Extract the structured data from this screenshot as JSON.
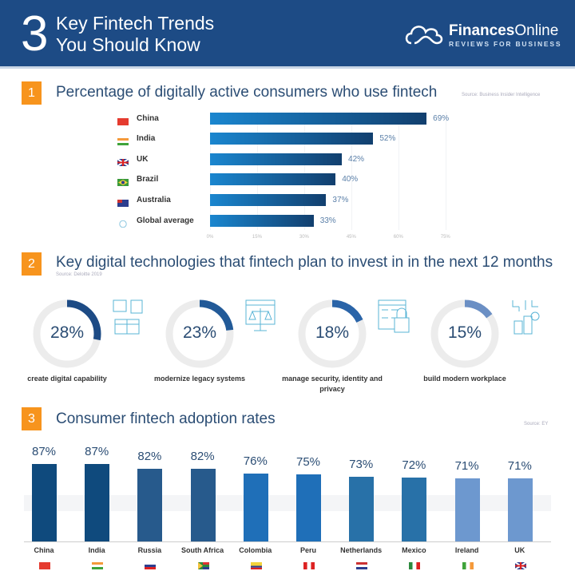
{
  "header": {
    "number": "3",
    "title_line1": "Key Fintech Trends",
    "title_line2": "You Should Know",
    "brand_bold": "Finances",
    "brand_light": "Online",
    "tagline": "REVIEWS FOR BUSINESS",
    "bg": "#1d4b85"
  },
  "sections": [
    {
      "number": "1",
      "title": "Percentage of digitally active consumers who use fintech",
      "source": "Source: Business Insider Intelligence"
    },
    {
      "number": "2",
      "title": "Key digital technologies that fintech plan to invest in in the next 12 months",
      "source": "Source: Deloitte 2019"
    },
    {
      "number": "3",
      "title": "Consumer fintech adoption rates",
      "source": "Source: EY"
    }
  ],
  "chart_data": [
    {
      "type": "bar",
      "orientation": "horizontal",
      "categories": [
        "China",
        "India",
        "UK",
        "Brazil",
        "Australia",
        "Global average"
      ],
      "values": [
        69,
        52,
        42,
        40,
        37,
        33
      ],
      "value_labels": [
        "69%",
        "52%",
        "42%",
        "40%",
        "37%",
        "33%"
      ],
      "xlim": [
        0,
        75
      ],
      "ticks": [
        "0%",
        "15%",
        "30%",
        "45%",
        "60%",
        "75%"
      ],
      "flags": [
        "china",
        "india",
        "uk",
        "brazil",
        "australia",
        "globe"
      ],
      "color": "#1565a8"
    },
    {
      "type": "pie",
      "variant": "donut",
      "categories": [
        "create digital capability",
        "modernize legacy systems",
        "manage security, identity and privacy",
        "build modern workplace"
      ],
      "values": [
        28,
        23,
        18,
        15
      ],
      "value_labels": [
        "28%",
        "23%",
        "18%",
        "15%"
      ],
      "icons": [
        "boxes-icon",
        "scales-icon",
        "lock-checklist-icon",
        "network-buildings-icon"
      ],
      "colors": [
        "#1d4b85",
        "#225a98",
        "#2a64a8",
        "#6b8fc4"
      ]
    },
    {
      "type": "bar",
      "categories": [
        "China",
        "India",
        "Russia",
        "South Africa",
        "Colombia",
        "Peru",
        "Netherlands",
        "Mexico",
        "Ireland",
        "UK"
      ],
      "values": [
        87,
        87,
        82,
        82,
        76,
        75,
        73,
        72,
        71,
        71
      ],
      "value_labels": [
        "87%",
        "87%",
        "82%",
        "82%",
        "76%",
        "75%",
        "73%",
        "72%",
        "71%",
        "71%"
      ],
      "colors": [
        "#0f4a7d",
        "#0f4a7d",
        "#275a8c",
        "#275a8c",
        "#1f6fb8",
        "#1f6fb8",
        "#2871a8",
        "#2871a8",
        "#6d98cf",
        "#6d98cf"
      ],
      "ylim": [
        0,
        87
      ]
    }
  ]
}
